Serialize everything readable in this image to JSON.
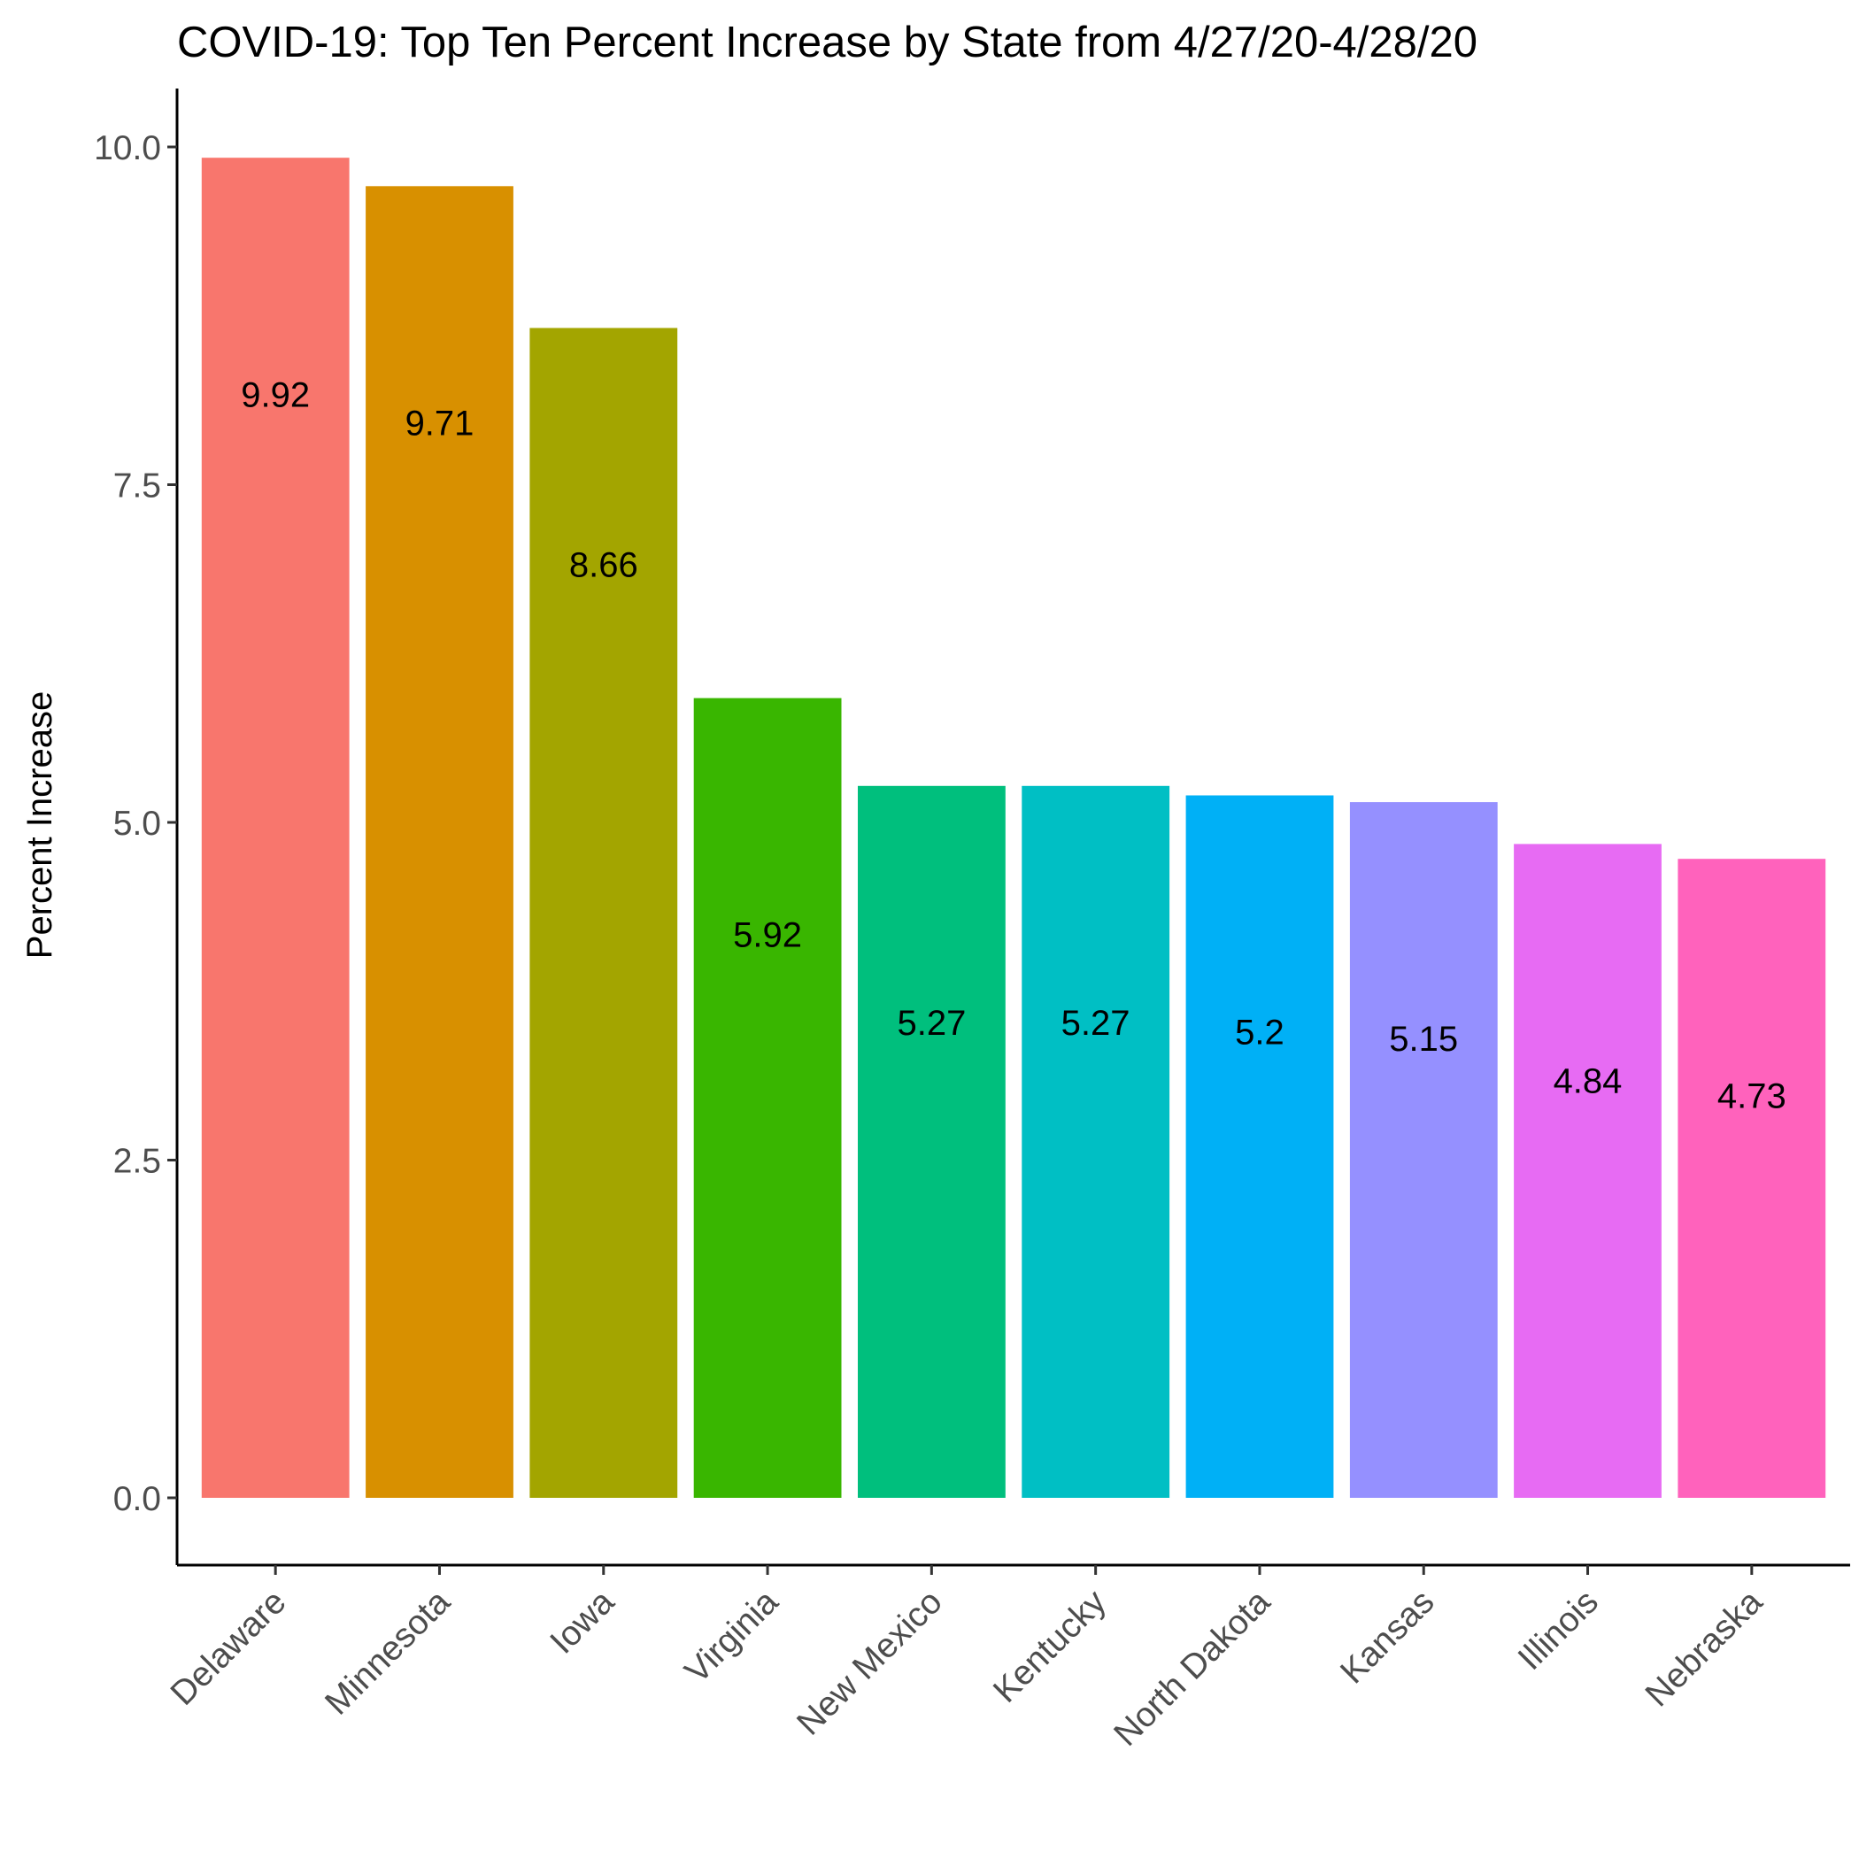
{
  "chart_data": {
    "type": "bar",
    "title": "COVID-19: Top Ten Percent Increase by State from 4/27/20-4/28/20",
    "xlabel": "",
    "ylabel": "Percent Increase",
    "categories": [
      "Delaware",
      "Minnesota",
      "Iowa",
      "Virginia",
      "New Mexico",
      "Kentucky",
      "North Dakota",
      "Kansas",
      "Illinois",
      "Nebraska"
    ],
    "values": [
      9.92,
      9.71,
      8.66,
      5.92,
      5.27,
      5.27,
      5.2,
      5.15,
      4.84,
      4.73
    ],
    "data_labels": [
      "9.92",
      "9.71",
      "8.66",
      "5.92",
      "5.27",
      "5.27",
      "5.2",
      "5.15",
      "4.84",
      "4.73"
    ],
    "colors": [
      "#F8766D",
      "#D89000",
      "#A3A500",
      "#39B600",
      "#00BF7D",
      "#00BFC4",
      "#00B0F6",
      "#9590FF",
      "#E76BF3",
      "#FF62BC"
    ],
    "yticks": [
      0,
      2.5,
      5,
      7.5,
      10
    ],
    "ytick_labels": [
      "0.0",
      "2.5",
      "5.0",
      "7.5",
      "10.0"
    ],
    "ylim": [
      -0.5,
      10.42
    ],
    "grid": false,
    "legend": "none"
  }
}
